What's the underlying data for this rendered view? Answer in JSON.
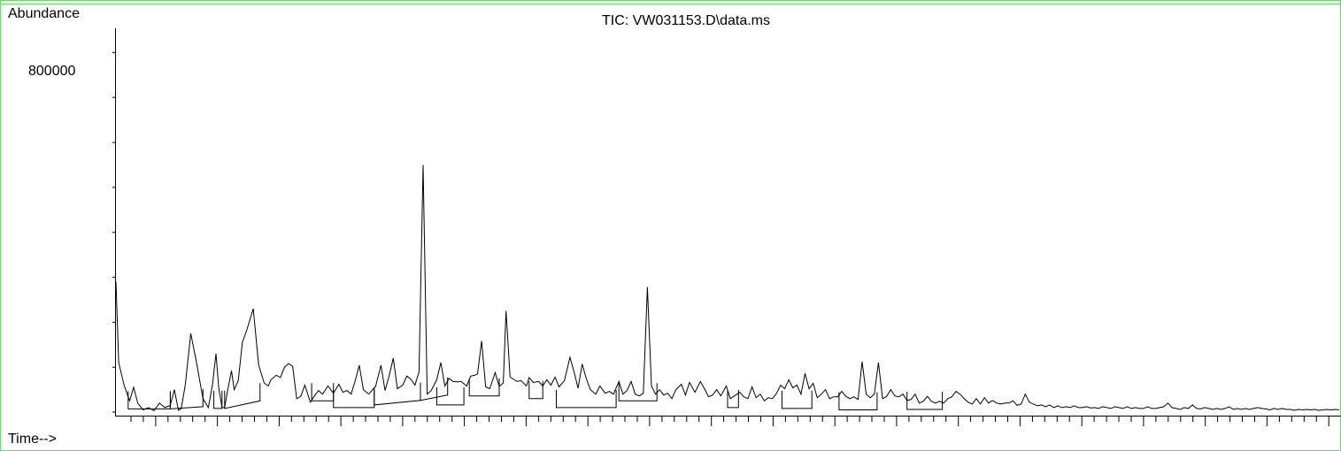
{
  "chart_data": {
    "type": "line",
    "title": "TIC: VW031153.D\\data.ms",
    "ylabel": "Abundance",
    "xlabel": "Time-->",
    "y_tick_labels": [
      "800000"
    ],
    "ylim": [
      0,
      850000
    ],
    "grid": false,
    "series": [
      {
        "values": [
          [
            0.0,
            290000
          ],
          [
            1.0,
            110000
          ],
          [
            3.0,
            60000
          ],
          [
            5.0,
            25000
          ],
          [
            6.5,
            55000
          ],
          [
            8.0,
            20000
          ],
          [
            10.0,
            5000
          ],
          [
            12.0,
            10000
          ],
          [
            14.0,
            3000
          ],
          [
            16.0,
            20000
          ],
          [
            18.0,
            10000
          ],
          [
            20.0,
            15000
          ],
          [
            21.5,
            50000
          ],
          [
            23.0,
            4000
          ],
          [
            24.0,
            8000
          ],
          [
            25.5,
            60000
          ],
          [
            27.5,
            175000
          ],
          [
            29.5,
            115000
          ],
          [
            32.0,
            30000
          ],
          [
            34.0,
            10000
          ],
          [
            35.5,
            60000
          ],
          [
            36.8,
            130000
          ],
          [
            37.8,
            55000
          ],
          [
            39.0,
            10000
          ],
          [
            40.0,
            10000
          ],
          [
            41.0,
            45000
          ],
          [
            42.5,
            92000
          ],
          [
            43.5,
            50000
          ],
          [
            45.0,
            70000
          ],
          [
            46.5,
            155000
          ],
          [
            48.0,
            180000
          ],
          [
            50.5,
            230000
          ],
          [
            52.5,
            105000
          ],
          [
            54.5,
            65000
          ],
          [
            56.0,
            58000
          ],
          [
            57.0,
            72000
          ],
          [
            59.0,
            82000
          ],
          [
            60.5,
            77000
          ],
          [
            62.0,
            100000
          ],
          [
            63.5,
            108000
          ],
          [
            65.0,
            102000
          ],
          [
            66.5,
            30000
          ],
          [
            68.0,
            35000
          ],
          [
            69.5,
            60000
          ],
          [
            71.5,
            22000
          ],
          [
            73.0,
            36000
          ],
          [
            74.5,
            48000
          ],
          [
            76.0,
            40000
          ],
          [
            78.0,
            58000
          ],
          [
            80.0,
            42000
          ],
          [
            82.0,
            62000
          ],
          [
            83.5,
            44000
          ],
          [
            85.0,
            48000
          ],
          [
            86.5,
            40000
          ],
          [
            88.0,
            70000
          ],
          [
            89.5,
            104000
          ],
          [
            91.0,
            50000
          ],
          [
            93.0,
            40000
          ],
          [
            95.5,
            57000
          ],
          [
            97.5,
            104000
          ],
          [
            99.0,
            48000
          ],
          [
            100.5,
            80000
          ],
          [
            102.0,
            120000
          ],
          [
            103.5,
            52000
          ],
          [
            105.5,
            60000
          ],
          [
            107.0,
            80000
          ],
          [
            108.5,
            73000
          ],
          [
            110.0,
            60000
          ],
          [
            111.5,
            90000
          ],
          [
            113.0,
            550000
          ],
          [
            114.5,
            40000
          ],
          [
            116.0,
            48000
          ],
          [
            118.0,
            72000
          ],
          [
            119.5,
            110000
          ],
          [
            121.0,
            58000
          ],
          [
            122.5,
            75000
          ],
          [
            124.0,
            68000
          ],
          [
            125.5,
            67000
          ],
          [
            127.0,
            68000
          ],
          [
            129.0,
            58000
          ],
          [
            130.5,
            80000
          ],
          [
            132.0,
            82000
          ],
          [
            133.0,
            85000
          ],
          [
            134.5,
            158000
          ],
          [
            136.0,
            56000
          ],
          [
            137.5,
            52000
          ],
          [
            139.5,
            88000
          ],
          [
            141.0,
            57000
          ],
          [
            142.5,
            65000
          ],
          [
            143.5,
            225000
          ],
          [
            145.0,
            78000
          ],
          [
            147.5,
            68000
          ],
          [
            149.0,
            70000
          ],
          [
            151.0,
            58000
          ],
          [
            152.0,
            77000
          ],
          [
            153.5,
            66000
          ],
          [
            155.5,
            68000
          ],
          [
            157.0,
            58000
          ],
          [
            158.5,
            72000
          ],
          [
            160.0,
            60000
          ],
          [
            161.5,
            78000
          ],
          [
            163.0,
            56000
          ],
          [
            165.0,
            70000
          ],
          [
            167.0,
            122000
          ],
          [
            168.5,
            90000
          ],
          [
            170.0,
            53000
          ],
          [
            171.5,
            107000
          ],
          [
            173.0,
            75000
          ],
          [
            174.5,
            50000
          ],
          [
            176.5,
            40000
          ],
          [
            178.0,
            58000
          ],
          [
            180.0,
            42000
          ],
          [
            181.5,
            46000
          ],
          [
            183.0,
            40000
          ],
          [
            185.0,
            68000
          ],
          [
            186.5,
            40000
          ],
          [
            188.0,
            48000
          ],
          [
            189.5,
            68000
          ],
          [
            191.0,
            40000
          ],
          [
            192.5,
            36000
          ],
          [
            194.0,
            42000
          ],
          [
            195.5,
            278000
          ],
          [
            197.0,
            58000
          ],
          [
            198.5,
            40000
          ],
          [
            200.0,
            50000
          ],
          [
            201.5,
            38000
          ],
          [
            203.0,
            42000
          ],
          [
            204.5,
            30000
          ],
          [
            206.0,
            50000
          ],
          [
            208.0,
            62000
          ],
          [
            209.5,
            38000
          ],
          [
            211.0,
            66000
          ],
          [
            213.0,
            44000
          ],
          [
            215.0,
            68000
          ],
          [
            216.5,
            52000
          ],
          [
            218.0,
            34000
          ],
          [
            219.5,
            38000
          ],
          [
            221.0,
            50000
          ],
          [
            222.5,
            36000
          ],
          [
            224.5,
            58000
          ],
          [
            226.0,
            30000
          ],
          [
            228.0,
            38000
          ],
          [
            229.5,
            44000
          ],
          [
            231.0,
            34000
          ],
          [
            232.5,
            30000
          ],
          [
            234.0,
            56000
          ],
          [
            235.5,
            32000
          ],
          [
            237.0,
            40000
          ],
          [
            238.5,
            25000
          ],
          [
            240.0,
            32000
          ],
          [
            241.5,
            30000
          ],
          [
            243.0,
            42000
          ],
          [
            244.5,
            60000
          ],
          [
            246.0,
            52000
          ],
          [
            247.5,
            72000
          ],
          [
            249.0,
            54000
          ],
          [
            250.5,
            60000
          ],
          [
            252.0,
            40000
          ],
          [
            253.5,
            86000
          ],
          [
            255.0,
            52000
          ],
          [
            256.5,
            64000
          ],
          [
            258.0,
            32000
          ],
          [
            259.5,
            40000
          ],
          [
            261.0,
            50000
          ],
          [
            262.5,
            30000
          ],
          [
            264.0,
            34000
          ],
          [
            265.5,
            34000
          ],
          [
            267.0,
            46000
          ],
          [
            268.5,
            35000
          ],
          [
            270.0,
            30000
          ],
          [
            271.5,
            34000
          ],
          [
            273.0,
            28000
          ],
          [
            274.5,
            112000
          ],
          [
            276.0,
            40000
          ],
          [
            277.5,
            32000
          ],
          [
            279.0,
            40000
          ],
          [
            280.5,
            110000
          ],
          [
            282.0,
            30000
          ],
          [
            283.5,
            35000
          ],
          [
            285.0,
            50000
          ],
          [
            286.5,
            36000
          ],
          [
            288.0,
            34000
          ],
          [
            289.5,
            40000
          ],
          [
            291.0,
            26000
          ],
          [
            292.5,
            28000
          ],
          [
            294.0,
            40000
          ],
          [
            295.5,
            20000
          ],
          [
            297.0,
            24000
          ],
          [
            298.5,
            35000
          ],
          [
            300.0,
            24000
          ],
          [
            301.5,
            20000
          ],
          [
            303.0,
            24000
          ],
          [
            304.5,
            20000
          ],
          [
            306.0,
            30000
          ],
          [
            307.5,
            34000
          ],
          [
            309.0,
            46000
          ],
          [
            310.5,
            40000
          ],
          [
            312.0,
            30000
          ],
          [
            313.5,
            22000
          ],
          [
            315.0,
            18000
          ],
          [
            316.5,
            30000
          ],
          [
            318.0,
            18000
          ],
          [
            319.5,
            32000
          ],
          [
            321.0,
            20000
          ],
          [
            322.5,
            26000
          ],
          [
            324.0,
            20000
          ],
          [
            325.5,
            18000
          ],
          [
            327.0,
            20000
          ],
          [
            328.5,
            20000
          ],
          [
            330.0,
            25000
          ],
          [
            331.5,
            15000
          ],
          [
            333.0,
            18000
          ],
          [
            334.5,
            40000
          ],
          [
            336.0,
            22000
          ],
          [
            337.5,
            18000
          ],
          [
            339.0,
            14000
          ],
          [
            340.5,
            16000
          ],
          [
            342.0,
            12000
          ],
          [
            343.5,
            16000
          ],
          [
            345.0,
            10000
          ],
          [
            346.5,
            14000
          ],
          [
            348.0,
            10000
          ],
          [
            349.5,
            12000
          ],
          [
            351.0,
            10000
          ],
          [
            352.5,
            14000
          ],
          [
            354.0,
            10000
          ],
          [
            355.5,
            10000
          ],
          [
            357.0,
            12000
          ],
          [
            358.5,
            9000
          ],
          [
            360.0,
            10000
          ],
          [
            361.5,
            8000
          ],
          [
            363.0,
            12000
          ],
          [
            364.5,
            10000
          ],
          [
            366.0,
            8000
          ],
          [
            367.5,
            12000
          ],
          [
            369.0,
            10000
          ],
          [
            370.5,
            8000
          ],
          [
            372.0,
            12000
          ],
          [
            373.5,
            8000
          ],
          [
            375.0,
            10000
          ],
          [
            376.5,
            8000
          ],
          [
            378.0,
            8000
          ],
          [
            379.5,
            12000
          ],
          [
            381.0,
            8000
          ],
          [
            382.5,
            8000
          ],
          [
            384.0,
            10000
          ],
          [
            385.5,
            12000
          ],
          [
            387.0,
            20000
          ],
          [
            388.5,
            10000
          ],
          [
            390.0,
            8000
          ],
          [
            391.5,
            6000
          ],
          [
            393.0,
            10000
          ],
          [
            394.5,
            8000
          ],
          [
            396.0,
            16000
          ],
          [
            397.5,
            8000
          ],
          [
            399.0,
            7000
          ],
          [
            400.5,
            10000
          ],
          [
            402.0,
            8000
          ],
          [
            403.5,
            6000
          ],
          [
            405.0,
            8000
          ],
          [
            406.5,
            6000
          ],
          [
            408.0,
            8000
          ],
          [
            409.5,
            12000
          ],
          [
            411.0,
            6000
          ],
          [
            412.5,
            8000
          ],
          [
            414.0,
            6000
          ],
          [
            415.5,
            8000
          ],
          [
            417.0,
            6000
          ],
          [
            418.5,
            8000
          ],
          [
            420.0,
            10000
          ],
          [
            421.5,
            8000
          ],
          [
            423.0,
            7000
          ],
          [
            424.5,
            5000
          ],
          [
            426.0,
            8000
          ],
          [
            427.5,
            6000
          ],
          [
            429.0,
            8000
          ],
          [
            430.5,
            6000
          ],
          [
            432.0,
            6000
          ],
          [
            433.5,
            4000
          ],
          [
            435.0,
            6000
          ],
          [
            436.5,
            5000
          ],
          [
            438.0,
            6000
          ],
          [
            439.5,
            5000
          ],
          [
            441.0,
            6000
          ],
          [
            442.5,
            4000
          ],
          [
            444.0,
            5000
          ],
          [
            445.5,
            6000
          ],
          [
            447.0,
            5000
          ],
          [
            448.5,
            6000
          ],
          [
            450.0,
            5000
          ]
        ]
      }
    ],
    "x_range": [
      0,
      450
    ]
  }
}
